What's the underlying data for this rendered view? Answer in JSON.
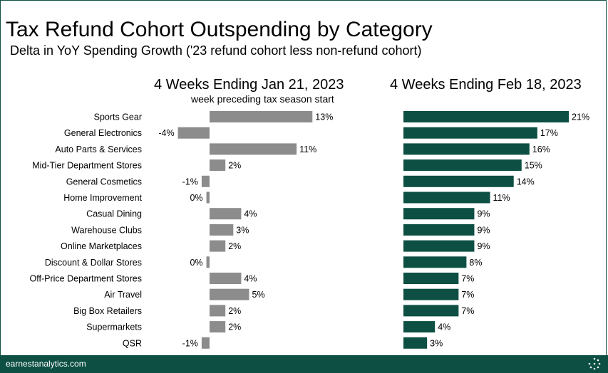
{
  "header": {
    "title": "Tax Refund Cohort Outspending by Category",
    "subtitle": "Delta in YoY Spending Growth ('23 refund cohort less non-refund cohort)"
  },
  "footer": {
    "source": "earnestanalytics.com",
    "logo_icon": "dotted-circle-logo-icon"
  },
  "colors": {
    "left_bar": "#8c8c8c",
    "right_bar": "#0d4f43",
    "footer_bg": "#0d4f43"
  },
  "chart_data": [
    {
      "type": "bar",
      "orientation": "horizontal",
      "title": "4 Weeks Ending Jan 21, 2023",
      "subtitle": "week preceding tax season start",
      "categories": [
        "Sports Gear",
        "General Electronics",
        "Auto Parts & Services",
        "Mid-Tier Department Stores",
        "General Cosmetics",
        "Home Improvement",
        "Casual Dining",
        "Warehouse Clubs",
        "Online Marketplaces",
        "Discount & Dollar Stores",
        "Off-Price Department Stores",
        "Air Travel",
        "Big Box Retailers",
        "Supermarkets",
        "QSR"
      ],
      "values": [
        13,
        -4,
        11,
        2,
        -1,
        -0.4,
        4,
        3,
        2,
        -0.4,
        4,
        5,
        2,
        2,
        -1
      ],
      "labels": [
        "13%",
        "-4%",
        "11%",
        "2%",
        "-1%",
        "0%",
        "4%",
        "3%",
        "2%",
        "0%",
        "4%",
        "5%",
        "2%",
        "2%",
        "-1%"
      ],
      "value_format": "percent",
      "xlim": [
        -4,
        13
      ]
    },
    {
      "type": "bar",
      "orientation": "horizontal",
      "title": "4 Weeks Ending Feb 18, 2023",
      "categories": [
        "Sports Gear",
        "General Electronics",
        "Auto Parts & Services",
        "Mid-Tier Department Stores",
        "General Cosmetics",
        "Home Improvement",
        "Casual Dining",
        "Warehouse Clubs",
        "Online Marketplaces",
        "Discount & Dollar Stores",
        "Off-Price Department Stores",
        "Air Travel",
        "Big Box Retailers",
        "Supermarkets",
        "QSR"
      ],
      "values": [
        21,
        17,
        16,
        15,
        14,
        11,
        9,
        9,
        9,
        8,
        7,
        7,
        7,
        4,
        3
      ],
      "labels": [
        "21%",
        "17%",
        "16%",
        "15%",
        "14%",
        "11%",
        "9%",
        "9%",
        "9%",
        "8%",
        "7%",
        "7%",
        "7%",
        "4%",
        "3%"
      ],
      "value_format": "percent",
      "xlim": [
        0,
        21
      ]
    }
  ]
}
